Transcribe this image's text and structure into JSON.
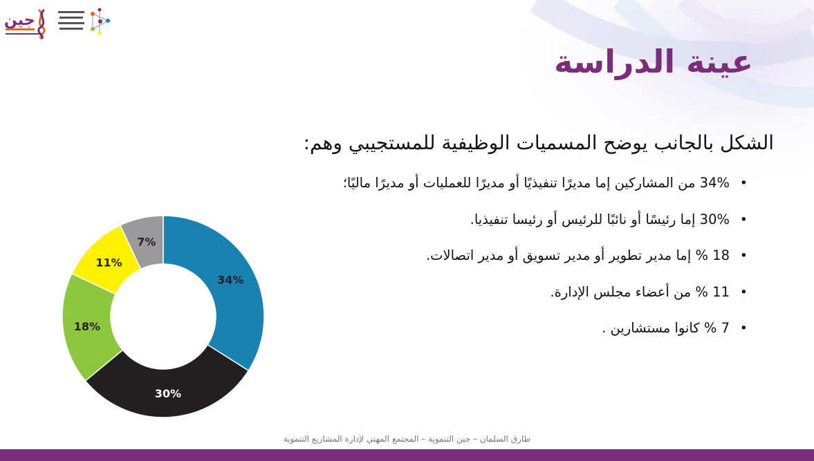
{
  "title": "عينة الدراسة",
  "subtitle": "الشكل بالجانب يوضح المسميات الوظيفية للمستجيبي وهم:",
  "bullets": [
    "34% من المشاركين إما مديرًا تنفيذيًا أو مديرًا للعمليات أو مديرًا ماليًا؛",
    "30% إما رئيسًا أو نائبًا للرئيس أو رئيسا تنفيذيا.",
    "18 % إما مدير تطوير أو مدير تسويق أو مدير اتصالات.",
    "11 % من أعضاء مجلس الإدارة.",
    "7 % كانوا مستشارين ."
  ],
  "footer": "طارق السلمان – جين التنموية – المجتمع المهني لإدارة المشاريع التنموية",
  "logos": {
    "left_icon": "jeen-dna-logo-icon",
    "right_icon": "network-logo-icon"
  },
  "chart_data": {
    "type": "pie",
    "donut": true,
    "title": "",
    "slices": [
      {
        "value": 34,
        "label": "34%",
        "color": "#1a82b0"
      },
      {
        "value": 30,
        "label": "30%",
        "color": "#231f20"
      },
      {
        "value": 18,
        "label": "18%",
        "color": "#8dc63f"
      },
      {
        "value": 11,
        "label": "11%",
        "color": "#fff200"
      },
      {
        "value": 7,
        "label": "7%",
        "color": "#9a9a9c"
      }
    ],
    "start": "top",
    "direction": "clockwise",
    "legend": "none"
  },
  "colors": {
    "accent": "#7b2d7c"
  }
}
